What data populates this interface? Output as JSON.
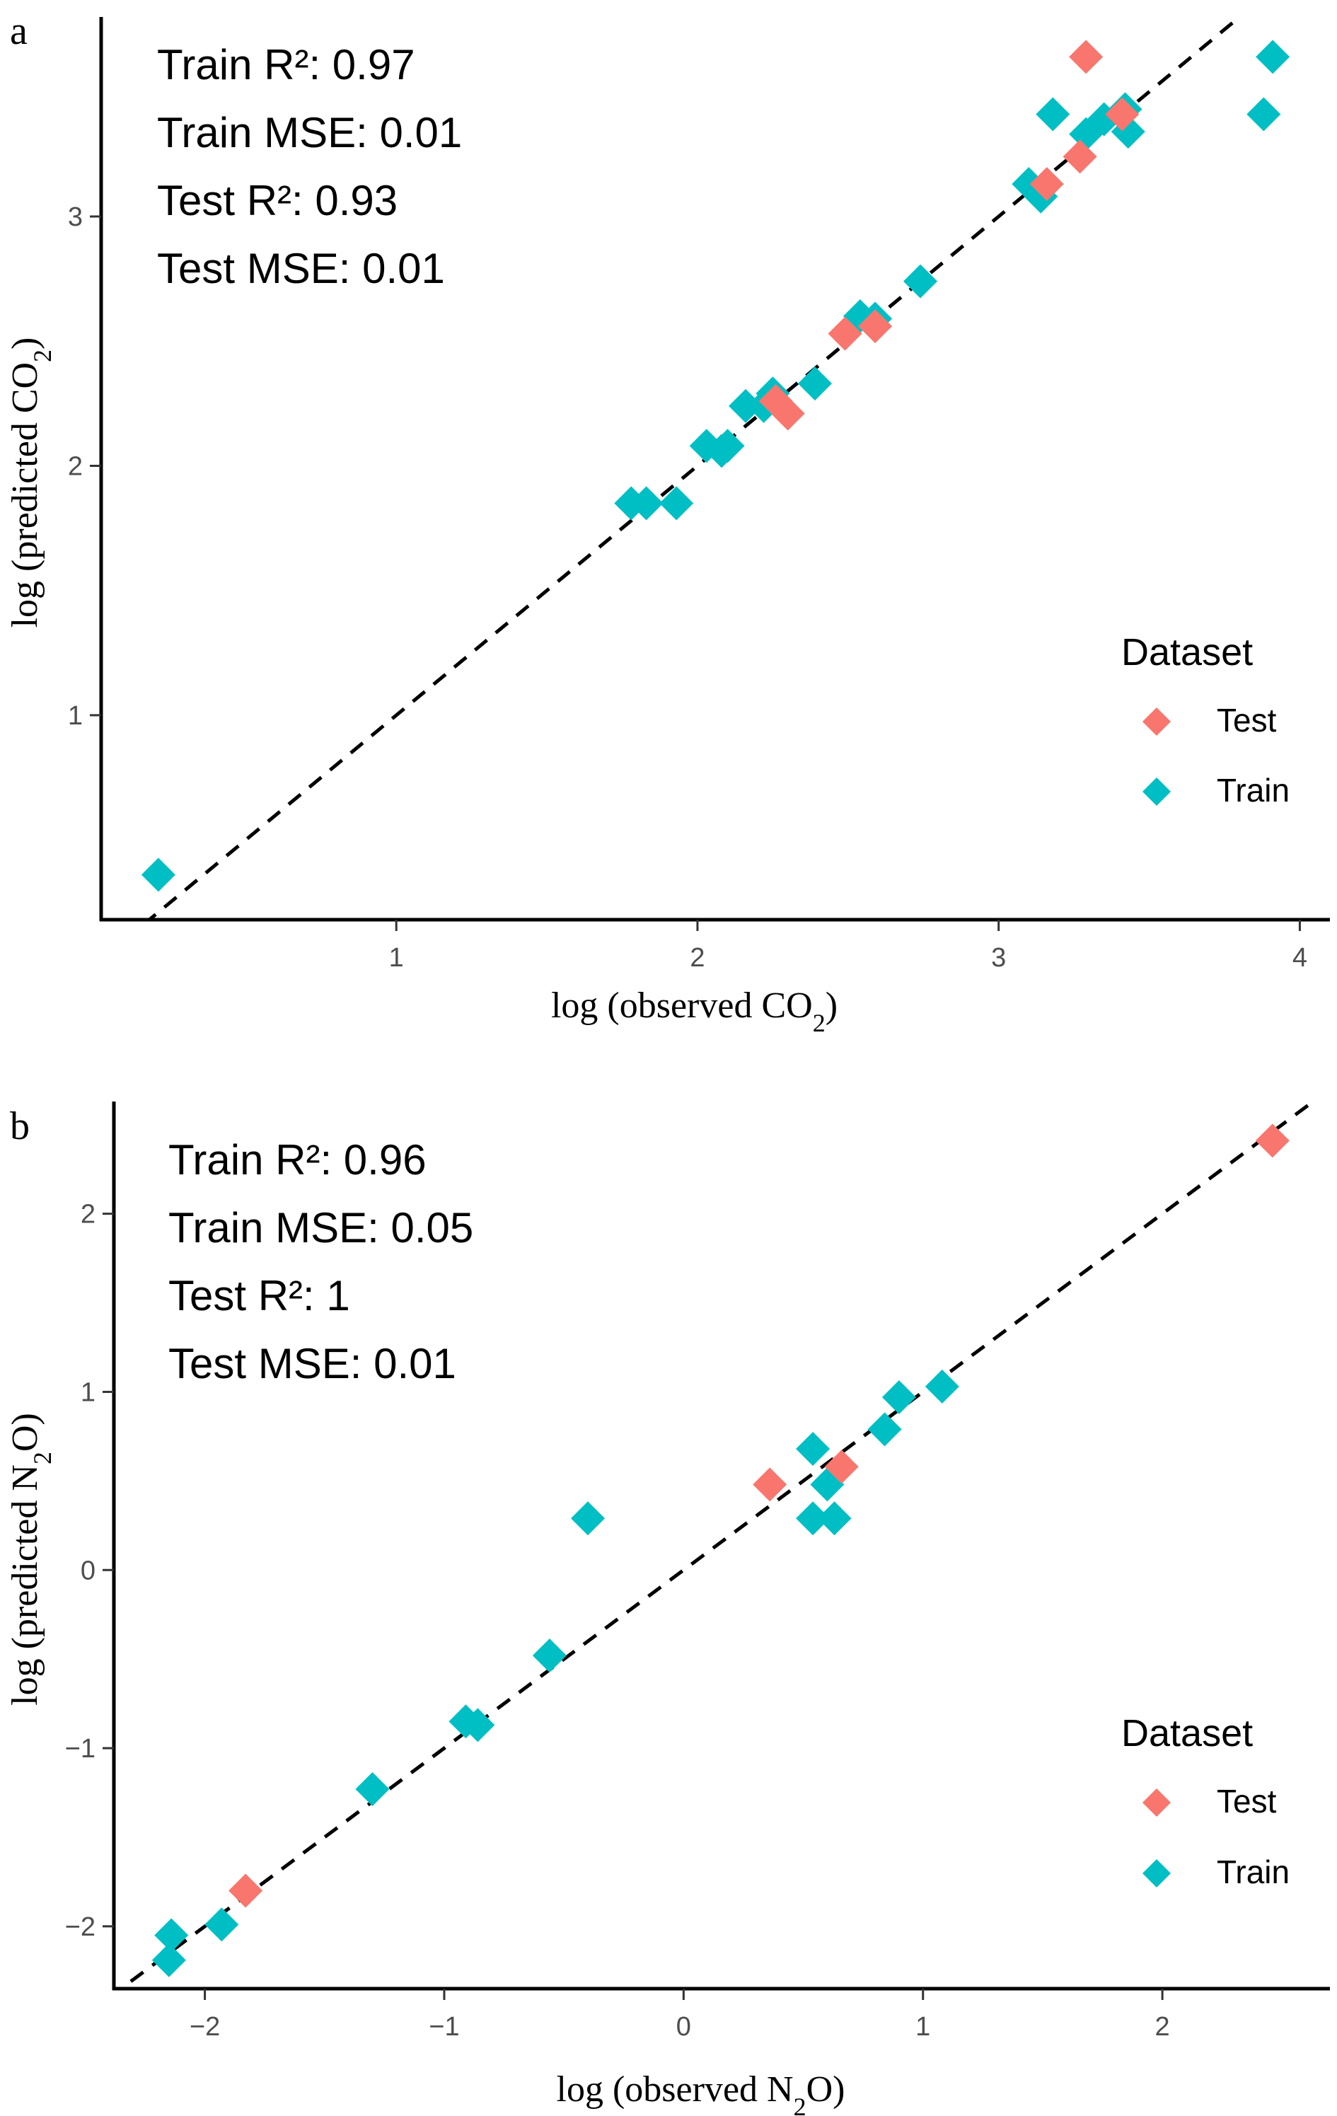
{
  "colors": {
    "Test": "#F8766D",
    "Train": "#00BFC4",
    "reference_line": "#000000"
  },
  "chart_data": [
    {
      "panel": "a",
      "type": "scatter",
      "title": "",
      "xlabel": "log (observed CO2)",
      "ylabel": "log (predicted CO2)",
      "xlabel_parts": {
        "pre": "log (observed CO",
        "sub": "2",
        "post": ")"
      },
      "ylabel_parts": {
        "pre": "log (predicted CO",
        "sub": "2",
        "post": ")"
      },
      "xlim": [
        0.02,
        4.1
      ],
      "ylim": [
        0.18,
        3.8
      ],
      "xticks": [
        1,
        2,
        3,
        4
      ],
      "yticks": [
        1,
        2,
        3
      ],
      "xtick_labels": [
        "1",
        "2",
        "3",
        "4"
      ],
      "ytick_labels": [
        "1",
        "2",
        "3"
      ],
      "grid": false,
      "reference_line": "y = x (dashed)",
      "annotations": [
        "Train R²: 0.97",
        "Train MSE: 0.01",
        "Test R²: 0.93",
        "Test MSE: 0.01"
      ],
      "legend": {
        "title": "Dataset",
        "entries": [
          "Test",
          "Train"
        ],
        "placement": "right"
      },
      "series": [
        {
          "name": "Train",
          "points": [
            [
              0.21,
              0.36
            ],
            [
              1.78,
              1.85
            ],
            [
              1.83,
              1.85
            ],
            [
              1.93,
              1.85
            ],
            [
              2.03,
              2.08
            ],
            [
              2.08,
              2.06
            ],
            [
              2.1,
              2.08
            ],
            [
              2.16,
              2.24
            ],
            [
              2.22,
              2.24
            ],
            [
              2.25,
              2.29
            ],
            [
              2.39,
              2.33
            ],
            [
              2.54,
              2.6
            ],
            [
              2.59,
              2.59
            ],
            [
              2.74,
              2.74
            ],
            [
              3.1,
              3.13
            ],
            [
              3.14,
              3.08
            ],
            [
              3.18,
              3.41
            ],
            [
              3.29,
              3.33
            ],
            [
              3.35,
              3.39
            ],
            [
              3.42,
              3.43
            ],
            [
              3.43,
              3.34
            ],
            [
              3.88,
              3.41
            ],
            [
              3.91,
              3.64
            ]
          ]
        },
        {
          "name": "Test",
          "points": [
            [
              2.26,
              2.26
            ],
            [
              2.3,
              2.21
            ],
            [
              2.49,
              2.53
            ],
            [
              2.59,
              2.56
            ],
            [
              3.16,
              3.13
            ],
            [
              3.27,
              3.24
            ],
            [
              3.41,
              3.41
            ],
            [
              3.29,
              3.64
            ]
          ]
        }
      ]
    },
    {
      "panel": "b",
      "type": "scatter",
      "title": "",
      "xlabel": "log (observed N2O)",
      "ylabel": "log (predicted N2O)",
      "xlabel_parts": {
        "pre": "log (observed N",
        "sub": "2",
        "post": "O)"
      },
      "ylabel_parts": {
        "pre": "log (predicted N",
        "sub": "2",
        "post": "O)"
      },
      "xlim": [
        -2.38,
        2.7
      ],
      "ylim": [
        -2.35,
        2.63
      ],
      "xticks": [
        -2,
        -1,
        0,
        1,
        2
      ],
      "yticks": [
        -2,
        -1,
        0,
        1,
        2
      ],
      "xtick_labels": [
        "−2",
        "−1",
        "0",
        "1",
        "2"
      ],
      "ytick_labels": [
        "−2",
        "−1",
        "0",
        "1",
        "2"
      ],
      "grid": false,
      "reference_line": "y = x (dashed)",
      "annotations": [
        "Train R²: 0.96",
        "Train MSE: 0.05",
        "Test R²: 1",
        "Test MSE: 0.01"
      ],
      "legend": {
        "title": "Dataset",
        "entries": [
          "Test",
          "Train"
        ],
        "placement": "right"
      },
      "series": [
        {
          "name": "Train",
          "points": [
            [
              -2.15,
              -2.19
            ],
            [
              -2.14,
              -2.05
            ],
            [
              -1.93,
              -1.99
            ],
            [
              -1.3,
              -1.23
            ],
            [
              -0.91,
              -0.85
            ],
            [
              -0.86,
              -0.87
            ],
            [
              -0.56,
              -0.48
            ],
            [
              -0.4,
              0.29
            ],
            [
              0.54,
              0.68
            ],
            [
              0.54,
              0.29
            ],
            [
              0.6,
              0.48
            ],
            [
              0.63,
              0.29
            ],
            [
              0.84,
              0.79
            ],
            [
              0.9,
              0.97
            ],
            [
              1.08,
              1.03
            ]
          ]
        },
        {
          "name": "Test",
          "points": [
            [
              -1.83,
              -1.8
            ],
            [
              0.36,
              0.48
            ],
            [
              0.66,
              0.58
            ],
            [
              2.46,
              2.41
            ]
          ]
        }
      ]
    }
  ]
}
